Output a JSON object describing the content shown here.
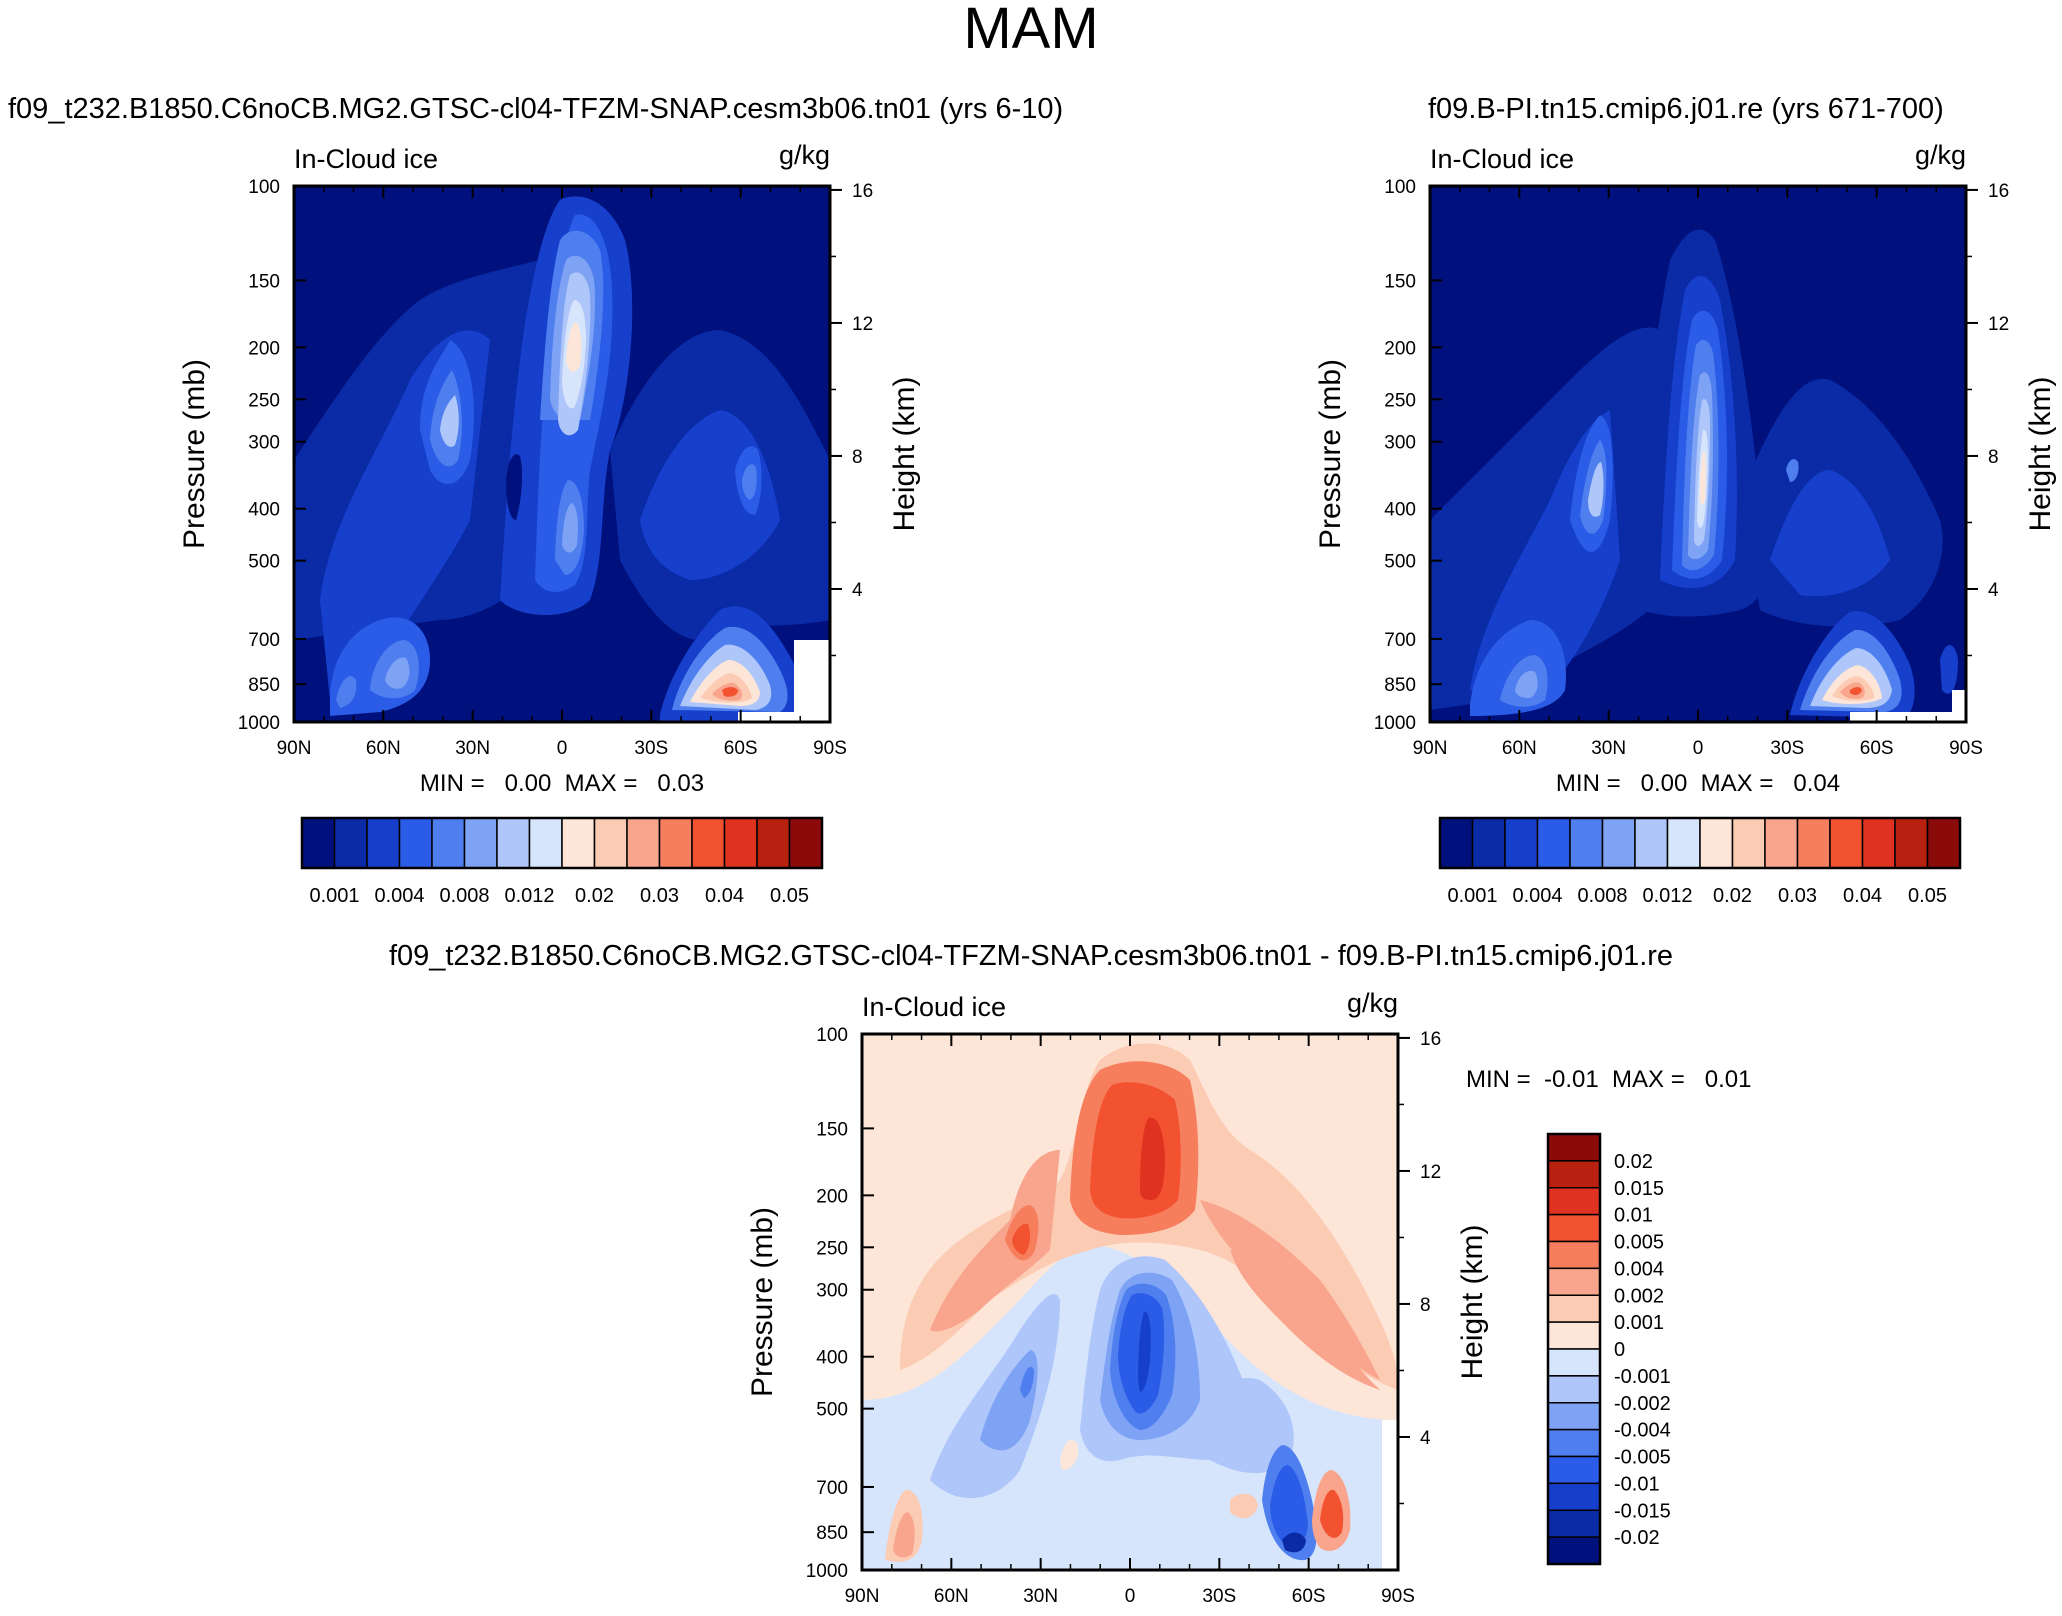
{
  "chart_data": [
    {
      "type": "heatmap",
      "id": "panel-a",
      "figure_title": "MAM",
      "title": "f09_t232.B1850.C6noCB.MG2.GTSC-cl04-TFZM-SNAP.cesm3b06.tn01 (yrs 6-10)",
      "left_label": "In-Cloud ice",
      "units": "g/kg",
      "ylabel": "Pressure (mb)",
      "ylabel_right": "Height (km)",
      "x_ticks": [
        "90N",
        "60N",
        "30N",
        "0",
        "30S",
        "60S",
        "90S"
      ],
      "y_ticks": [
        "100",
        "150",
        "200",
        "250",
        "300",
        "400",
        "500",
        "700",
        "850",
        "1000"
      ],
      "y_ticks_right": [
        "16",
        "12",
        "8",
        "4"
      ],
      "min_max": "MIN =   0.00  MAX =   0.03",
      "colorbar_labels": [
        "0.001",
        "0.004",
        "0.008",
        "0.012",
        "0.02",
        "0.03",
        "0.04",
        "0.05"
      ],
      "colorbar_colors": [
        "#00117d",
        "#0a2aa6",
        "#1640cc",
        "#2a5ce8",
        "#4f7fef",
        "#7ea2f4",
        "#aec6fa",
        "#d7e5fc",
        "#fde6d7",
        "#fccbb4",
        "#f9a48c",
        "#f67e5d",
        "#f2522f",
        "#e03221",
        "#b8200f",
        "#8b0a0a"
      ]
    },
    {
      "type": "heatmap",
      "id": "panel-b",
      "title": "f09.B-PI.tn15.cmip6.j01.re (yrs 671-700)",
      "left_label": "In-Cloud ice",
      "units": "g/kg",
      "ylabel": "Pressure (mb)",
      "ylabel_right": "Height (km)",
      "x_ticks": [
        "90N",
        "60N",
        "30N",
        "0",
        "30S",
        "60S",
        "90S"
      ],
      "y_ticks": [
        "100",
        "150",
        "200",
        "250",
        "300",
        "400",
        "500",
        "700",
        "850",
        "1000"
      ],
      "y_ticks_right": [
        "16",
        "12",
        "8",
        "4"
      ],
      "min_max": "MIN =   0.00  MAX =   0.04",
      "colorbar_labels": [
        "0.001",
        "0.004",
        "0.008",
        "0.012",
        "0.02",
        "0.03",
        "0.04",
        "0.05"
      ],
      "colorbar_colors": [
        "#00117d",
        "#0a2aa6",
        "#1640cc",
        "#2a5ce8",
        "#4f7fef",
        "#7ea2f4",
        "#aec6fa",
        "#d7e5fc",
        "#fde6d7",
        "#fccbb4",
        "#f9a48c",
        "#f67e5d",
        "#f2522f",
        "#e03221",
        "#b8200f",
        "#8b0a0a"
      ]
    },
    {
      "type": "heatmap",
      "id": "panel-diff",
      "title": "f09_t232.B1850.C6noCB.MG2.GTSC-cl04-TFZM-SNAP.cesm3b06.tn01 - f09.B-PI.tn15.cmip6.j01.re",
      "left_label": "In-Cloud ice",
      "units": "g/kg",
      "ylabel": "Pressure (mb)",
      "ylabel_right": "Height (km)",
      "x_ticks": [
        "90N",
        "60N",
        "30N",
        "0",
        "30S",
        "60S",
        "90S"
      ],
      "y_ticks": [
        "100",
        "150",
        "200",
        "250",
        "300",
        "400",
        "500",
        "700",
        "850",
        "1000"
      ],
      "y_ticks_right": [
        "16",
        "12",
        "8",
        "4"
      ],
      "min_max": "MIN =  -0.01  MAX =   0.01",
      "colorbar_labels": [
        "0.02",
        "0.015",
        "0.01",
        "0.005",
        "0.004",
        "0.002",
        "0.001",
        "0",
        "-0.001",
        "-0.002",
        "-0.004",
        "-0.005",
        "-0.01",
        "-0.015",
        "-0.02"
      ],
      "colorbar_colors": [
        "#8b0a0a",
        "#b8200f",
        "#e03221",
        "#f2522f",
        "#f67e5d",
        "#f9a48c",
        "#fccbb4",
        "#fde6d7",
        "#d7e5fc",
        "#aec6fa",
        "#7ea2f4",
        "#4f7fef",
        "#2a5ce8",
        "#1640cc",
        "#0a2aa6",
        "#00117d"
      ]
    }
  ]
}
